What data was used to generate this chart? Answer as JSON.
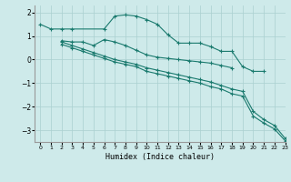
{
  "xlabel": "Humidex (Indice chaleur)",
  "xlim": [
    -0.5,
    23
  ],
  "ylim": [
    -3.5,
    2.3
  ],
  "yticks": [
    -3,
    -2,
    -1,
    0,
    1,
    2
  ],
  "xticks": [
    0,
    1,
    2,
    3,
    4,
    5,
    6,
    7,
    8,
    9,
    10,
    11,
    12,
    13,
    14,
    15,
    16,
    17,
    18,
    19,
    20,
    21,
    22,
    23
  ],
  "line_color": "#1a7a6e",
  "bg_color": "#ceeaea",
  "grid_color": "#aad0d0",
  "series": [
    {
      "x": [
        0,
        1,
        2,
        3,
        6,
        7,
        8,
        9,
        10,
        11,
        12,
        13,
        14,
        15,
        16,
        17,
        18,
        19,
        20,
        21
      ],
      "y": [
        1.5,
        1.3,
        1.3,
        1.3,
        1.3,
        1.85,
        1.9,
        1.85,
        1.7,
        1.5,
        1.05,
        0.7,
        0.7,
        0.7,
        0.55,
        0.35,
        0.35,
        -0.3,
        -0.5,
        -0.5
      ]
    },
    {
      "x": [
        2,
        3,
        4,
        5,
        6,
        7,
        8,
        9,
        10,
        11,
        12,
        13,
        14,
        15,
        16,
        17,
        18
      ],
      "y": [
        0.8,
        0.75,
        0.75,
        0.6,
        0.85,
        0.75,
        0.6,
        0.4,
        0.2,
        0.1,
        0.05,
        0.0,
        -0.05,
        -0.1,
        -0.15,
        -0.25,
        -0.35
      ]
    },
    {
      "x": [
        2,
        3,
        4,
        5,
        6,
        7,
        8,
        9,
        10,
        11,
        12,
        13,
        14,
        15,
        16,
        17,
        18,
        19,
        20,
        21,
        22,
        23
      ],
      "y": [
        0.75,
        0.6,
        0.45,
        0.3,
        0.15,
        0.0,
        -0.1,
        -0.2,
        -0.35,
        -0.45,
        -0.55,
        -0.65,
        -0.75,
        -0.85,
        -0.95,
        -1.1,
        -1.25,
        -1.35,
        -2.2,
        -2.55,
        -2.8,
        -3.35
      ]
    },
    {
      "x": [
        2,
        3,
        4,
        5,
        6,
        7,
        8,
        9,
        10,
        11,
        12,
        13,
        14,
        15,
        16,
        17,
        18,
        19,
        20,
        21,
        22,
        23
      ],
      "y": [
        0.65,
        0.5,
        0.35,
        0.2,
        0.05,
        -0.1,
        -0.2,
        -0.3,
        -0.5,
        -0.6,
        -0.7,
        -0.8,
        -0.9,
        -1.0,
        -1.15,
        -1.25,
        -1.45,
        -1.55,
        -2.4,
        -2.7,
        -2.95,
        -3.45
      ]
    }
  ]
}
